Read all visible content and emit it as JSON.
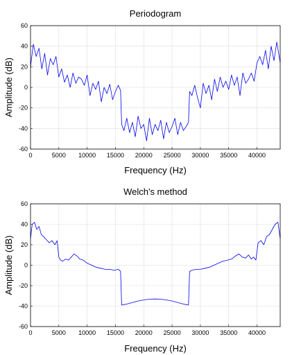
{
  "chart_data": [
    {
      "type": "line",
      "title": "Periodogram",
      "xlabel": "Frequency (Hz)",
      "ylabel": "Amplitude (dB)",
      "xlim": [
        0,
        44100
      ],
      "ylim": [
        -60,
        60
      ],
      "xticks": [
        0,
        5000,
        10000,
        15000,
        20000,
        25000,
        30000,
        35000,
        40000
      ],
      "yticks": [
        -60,
        -40,
        -20,
        0,
        20,
        40,
        60
      ],
      "grid": true,
      "color": "#0000ee",
      "series": [
        {
          "x": [
            0,
            500,
            1000,
            1500,
            2000,
            2500,
            3000,
            3500,
            4000,
            4500,
            5000,
            5500,
            6000,
            6500,
            7000,
            7500,
            8000,
            8500,
            9000,
            9500,
            10000,
            10500,
            11000,
            11500,
            12000,
            12500,
            13000,
            13500,
            14000,
            14500,
            15000,
            15500,
            15900,
            16100,
            16500,
            17000,
            17500,
            18000,
            18500,
            19000,
            19500,
            20000,
            20500,
            21000,
            21500,
            22000,
            22500,
            23000,
            23500,
            24000,
            24500,
            25000,
            25500,
            26000,
            26500,
            27000,
            27500,
            27900,
            28100,
            28500,
            29000,
            29500,
            30000,
            30500,
            31000,
            31500,
            32000,
            32500,
            33000,
            33500,
            34000,
            34500,
            35000,
            35500,
            36000,
            36500,
            37000,
            37500,
            38000,
            38500,
            39000,
            39500,
            40000,
            40500,
            41000,
            41500,
            42000,
            42500,
            43000,
            43500,
            44100
          ],
          "y": [
            20,
            42,
            30,
            38,
            18,
            33,
            12,
            28,
            22,
            30,
            10,
            18,
            5,
            12,
            0,
            14,
            4,
            10,
            8,
            2,
            12,
            -8,
            4,
            -2,
            6,
            -14,
            0,
            -6,
            3,
            -12,
            -4,
            2,
            -3,
            -36,
            -42,
            -30,
            -44,
            -34,
            -48,
            -28,
            -40,
            -36,
            -52,
            -30,
            -46,
            -36,
            -42,
            -32,
            -50,
            -34,
            -44,
            -38,
            -30,
            -46,
            -34,
            -42,
            -38,
            -34,
            -4,
            -8,
            2,
            -10,
            -20,
            4,
            -6,
            2,
            -12,
            8,
            -4,
            10,
            0,
            6,
            -2,
            12,
            2,
            10,
            -8,
            14,
            4,
            8,
            14,
            6,
            24,
            30,
            22,
            36,
            18,
            40,
            26,
            44,
            24
          ]
        }
      ]
    },
    {
      "type": "line",
      "title": "Welch's method",
      "xlabel": "Frequency (Hz)",
      "ylabel": "Amplitude (dB)",
      "xlim": [
        0,
        44100
      ],
      "ylim": [
        -60,
        60
      ],
      "xticks": [
        0,
        5000,
        10000,
        15000,
        20000,
        25000,
        30000,
        35000,
        40000
      ],
      "yticks": [
        -60,
        -40,
        -20,
        0,
        20,
        40,
        60
      ],
      "grid": true,
      "color": "#0000ee",
      "series": [
        {
          "x": [
            0,
            300,
            700,
            1100,
            1500,
            1900,
            2300,
            2800,
            3300,
            3800,
            4300,
            4700,
            5000,
            5300,
            5700,
            6200,
            6700,
            7200,
            7700,
            8200,
            8700,
            9300,
            10000,
            10800,
            11600,
            12400,
            13200,
            14000,
            14800,
            15500,
            15900,
            16100,
            17000,
            18000,
            19000,
            20000,
            21000,
            22000,
            23000,
            24000,
            25000,
            26000,
            27000,
            27900,
            28100,
            28500,
            29200,
            30000,
            30800,
            31600,
            32400,
            33200,
            34000,
            34800,
            35500,
            36200,
            36800,
            37400,
            38000,
            38500,
            39000,
            39400,
            39800,
            40200,
            40700,
            41200,
            41700,
            42200,
            42700,
            43200,
            43700,
            44100
          ],
          "y": [
            26,
            40,
            42,
            35,
            38,
            30,
            28,
            25,
            22,
            24,
            20,
            24,
            8,
            5,
            4,
            6,
            5,
            8,
            11,
            9,
            6,
            5,
            2,
            0,
            -2,
            -3,
            -4,
            -4,
            -5,
            -4,
            -6,
            -39,
            -38,
            -36.5,
            -35,
            -34,
            -33.2,
            -33,
            -33.2,
            -34,
            -35,
            -36.5,
            -38,
            -39,
            -6,
            -5,
            -4,
            -4,
            -3,
            -2,
            0,
            2,
            4,
            5,
            6,
            9,
            11,
            8,
            7,
            10,
            6,
            8,
            5,
            22,
            24,
            20,
            28,
            30,
            35,
            40,
            42,
            26
          ]
        }
      ]
    }
  ]
}
